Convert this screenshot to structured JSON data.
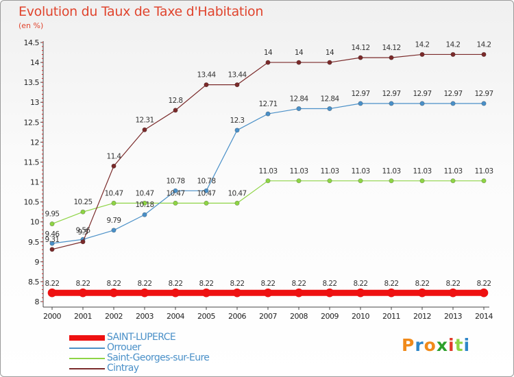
{
  "header": {
    "title": "Evolution du Taux de Taxe d'Habitation",
    "unit": "(en %)"
  },
  "chart_data": {
    "type": "line",
    "title": "Evolution du Taux de Taxe d'Habitation",
    "ylabel": "(en %)",
    "xlabel": "",
    "x": [
      "2000",
      "2001",
      "2002",
      "2003",
      "2004",
      "2005",
      "2006",
      "2007",
      "2008",
      "2009",
      "2010",
      "2011",
      "2012",
      "2013",
      "2014"
    ],
    "y_ticks": [
      "8",
      "8.5",
      "9",
      "9.5",
      "10",
      "10.5",
      "11",
      "11.5",
      "12",
      "12.5",
      "13",
      "13.5",
      "14",
      "14.5"
    ],
    "ylim": [
      8,
      14.5
    ],
    "grid": false,
    "legend_position": "bottom-left",
    "series": [
      {
        "name": "SAINT-LUPERCE",
        "color": "#ee1111",
        "values": [
          8.22,
          8.22,
          8.22,
          8.22,
          8.22,
          8.22,
          8.22,
          8.22,
          8.22,
          8.22,
          8.22,
          8.22,
          8.22,
          8.22,
          8.22
        ],
        "labels": [
          "8.22",
          "8.22",
          "8.22",
          "8.22",
          "8.22",
          "8.22",
          "8.22",
          "8.22",
          "8.22",
          "8.22",
          "8.22",
          "8.22",
          "8.22",
          "8.22",
          "8.22"
        ]
      },
      {
        "name": "Orrouer",
        "color": "#4a90c8",
        "values": [
          9.46,
          9.56,
          9.79,
          10.18,
          10.78,
          10.78,
          12.3,
          12.71,
          12.84,
          12.84,
          12.97,
          12.97,
          12.97,
          12.97,
          12.97
        ],
        "labels": [
          "9.46",
          "9.56",
          "9.79",
          "10.18",
          "10.78",
          "10.78",
          "12.3",
          "12.71",
          "12.84",
          "12.84",
          "12.97",
          "12.97",
          "12.97",
          "12.97",
          "12.97"
        ]
      },
      {
        "name": "Saint-Georges-sur-Eure",
        "color": "#8ed445",
        "values": [
          9.95,
          10.25,
          10.47,
          10.47,
          10.47,
          10.47,
          10.47,
          11.03,
          11.03,
          11.03,
          11.03,
          11.03,
          11.03,
          11.03,
          11.03
        ],
        "labels": [
          "9.95",
          "10.25",
          "10.47",
          "10.47",
          "10.47",
          "10.47",
          "10.47",
          "11.03",
          "11.03",
          "11.03",
          "11.03",
          "11.03",
          "11.03",
          "11.03",
          "11.03"
        ]
      },
      {
        "name": "Cintray",
        "color": "#7a2a2a",
        "values": [
          9.31,
          9.5,
          11.4,
          12.31,
          12.8,
          13.44,
          13.44,
          14,
          14,
          14,
          14.12,
          14.12,
          14.2,
          14.2,
          14.2
        ],
        "labels": [
          "9.31",
          "9.5",
          "11.4",
          "12.31",
          "12.8",
          "13.44",
          "13.44",
          "14",
          "14",
          "14",
          "14.12",
          "14.12",
          "14.2",
          "14.2",
          "14.2"
        ]
      }
    ]
  },
  "legend": {
    "items": [
      {
        "label": "SAINT-LUPERCE",
        "color": "#ee1111"
      },
      {
        "label": "Orrouer",
        "color": "#4a90c8"
      },
      {
        "label": "Saint-Georges-sur-Eure",
        "color": "#8ed445"
      },
      {
        "label": "Cintray",
        "color": "#7a2a2a"
      }
    ]
  },
  "logo": {
    "text": "Proxiti",
    "colors": [
      "#f08a1a",
      "#2e86c8",
      "#f08a1a",
      "#2ca02c",
      "#e23a2a",
      "#8ed445",
      "#2e86c8"
    ]
  }
}
